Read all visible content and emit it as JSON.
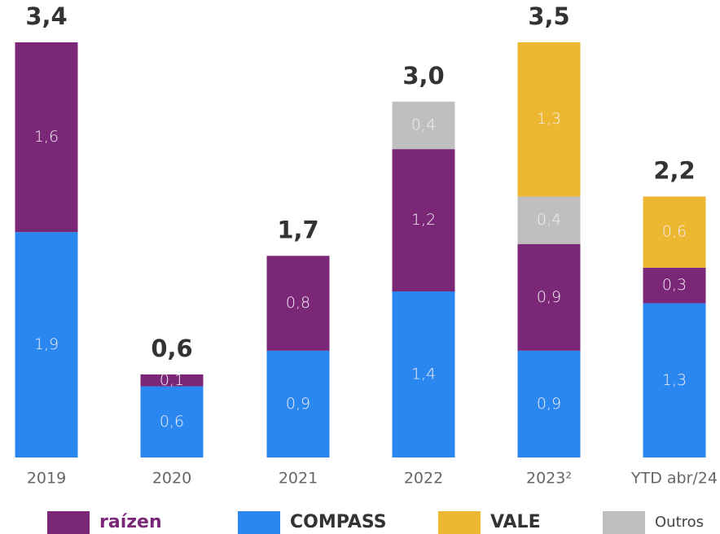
{
  "chart_data": {
    "type": "stacked_bar",
    "categories": [
      "2019",
      "2020",
      "2021",
      "2022",
      "2023²",
      "YTD abr/24"
    ],
    "series": [
      {
        "name": "COMPASS",
        "color": "#2b87f0",
        "values": [
          1.9,
          0.6,
          0.9,
          1.4,
          0.9,
          1.3
        ],
        "value_labels": [
          "1,9",
          "0,6",
          "0,9",
          "1,4",
          "0,9",
          "1,3"
        ]
      },
      {
        "name": "raízen",
        "color": "#7b2778",
        "values": [
          1.6,
          0.1,
          0.8,
          1.2,
          0.9,
          0.3
        ],
        "value_labels": [
          "1,6",
          "0,1",
          "0,8",
          "1,2",
          "0,9",
          "0,3"
        ]
      },
      {
        "name": "Outros",
        "color": "#bfbfbf",
        "values": [
          null,
          null,
          null,
          0.4,
          0.4,
          null
        ],
        "value_labels": [
          null,
          null,
          null,
          "0,4",
          "0,4",
          null
        ]
      },
      {
        "name": "VALE",
        "color": "#ecb731",
        "values": [
          null,
          null,
          null,
          null,
          1.3,
          0.6
        ],
        "value_labels": [
          null,
          null,
          null,
          null,
          "1,3",
          "0,6"
        ]
      }
    ],
    "totals": [
      3.4,
      0.6,
      1.7,
      3.0,
      3.5,
      2.2
    ],
    "total_labels": [
      "3,4",
      "0,6",
      "1,7",
      "3,0",
      "3,5",
      "2,2"
    ],
    "legend_order": [
      1,
      0,
      3,
      2
    ],
    "ylim": [
      0,
      3.5
    ]
  }
}
